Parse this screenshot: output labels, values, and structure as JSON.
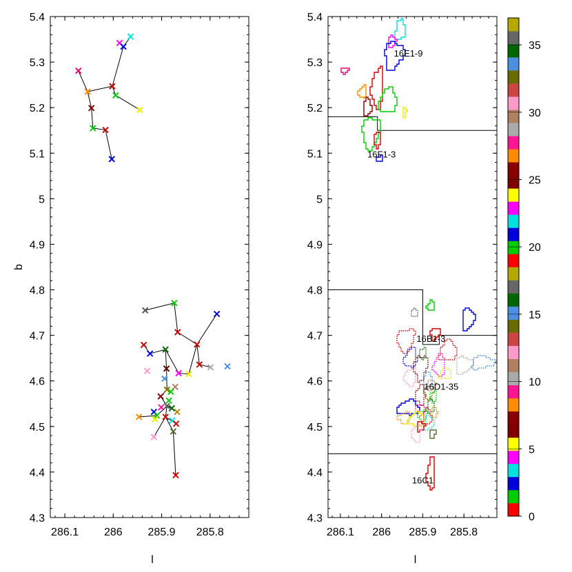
{
  "chart_data": [
    {
      "type": "scatter",
      "panel": "left",
      "xlabel": "l",
      "ylabel": "b",
      "xlim": [
        286.13,
        285.72
      ],
      "ylim": [
        4.3,
        5.4
      ],
      "xticks": [
        286.1,
        286.0,
        285.9,
        285.8
      ],
      "xtick_labels": [
        "286.1",
        "286",
        "285.9",
        "285.8"
      ],
      "yticks": [
        4.3,
        4.4,
        4.5,
        4.6,
        4.7,
        4.8,
        4.9,
        5.0,
        5.1,
        5.2,
        5.3,
        5.4
      ],
      "ytick_labels": [
        "4.3",
        "4.4",
        "4.5",
        "4.6",
        "4.7",
        "4.8",
        "4.9",
        "5",
        "5.1",
        "5.2",
        "5.3",
        "5.4"
      ],
      "points": [
        {
          "l": 285.964,
          "b": 5.356,
          "color": "#00e0e0"
        },
        {
          "l": 285.987,
          "b": 5.342,
          "color": "#ff00ff"
        },
        {
          "l": 285.979,
          "b": 5.334,
          "color": "#0000dd"
        },
        {
          "l": 286.072,
          "b": 5.281,
          "color": "#e8006e"
        },
        {
          "l": 286.002,
          "b": 5.247,
          "color": "#cc0000"
        },
        {
          "l": 286.053,
          "b": 5.235,
          "color": "#ff8c00"
        },
        {
          "l": 285.995,
          "b": 5.227,
          "color": "#00cc00"
        },
        {
          "l": 286.045,
          "b": 5.199,
          "color": "#800000"
        },
        {
          "l": 285.945,
          "b": 5.195,
          "color": "#eeee00"
        },
        {
          "l": 286.042,
          "b": 5.155,
          "color": "#00cc00"
        },
        {
          "l": 286.016,
          "b": 5.151,
          "color": "#cc0000"
        },
        {
          "l": 286.003,
          "b": 5.087,
          "color": "#0000dd"
        },
        {
          "l": 285.874,
          "b": 4.771,
          "color": "#00cc00"
        },
        {
          "l": 285.934,
          "b": 4.755,
          "color": "#555555"
        },
        {
          "l": 285.786,
          "b": 4.747,
          "color": "#0000dd"
        },
        {
          "l": 285.867,
          "b": 4.707,
          "color": "#cc0000"
        },
        {
          "l": 285.827,
          "b": 4.68,
          "color": "#cc0000"
        },
        {
          "l": 285.937,
          "b": 4.679,
          "color": "#cc0000"
        },
        {
          "l": 285.892,
          "b": 4.669,
          "color": "#006600"
        },
        {
          "l": 285.924,
          "b": 4.66,
          "color": "#0000dd"
        },
        {
          "l": 285.822,
          "b": 4.636,
          "color": "#cc0000"
        },
        {
          "l": 285.764,
          "b": 4.632,
          "color": "#4a90e2"
        },
        {
          "l": 285.799,
          "b": 4.63,
          "color": "#aaaaaa"
        },
        {
          "l": 285.89,
          "b": 4.627,
          "color": "#660000"
        },
        {
          "l": 285.93,
          "b": 4.622,
          "color": "#ff99cc"
        },
        {
          "l": 285.865,
          "b": 4.617,
          "color": "#ff00ff"
        },
        {
          "l": 285.844,
          "b": 4.615,
          "color": "#eeee00"
        },
        {
          "l": 285.894,
          "b": 4.605,
          "color": "#4a90e2"
        },
        {
          "l": 285.872,
          "b": 4.587,
          "color": "#b08060"
        },
        {
          "l": 285.889,
          "b": 4.581,
          "color": "#8b7500"
        },
        {
          "l": 285.881,
          "b": 4.576,
          "color": "#00cc00"
        },
        {
          "l": 285.902,
          "b": 4.566,
          "color": "#800000"
        },
        {
          "l": 285.885,
          "b": 4.557,
          "color": "#00cc00"
        },
        {
          "l": 285.889,
          "b": 4.545,
          "color": "#555555"
        },
        {
          "l": 285.901,
          "b": 4.542,
          "color": "#ff1493"
        },
        {
          "l": 285.879,
          "b": 4.54,
          "color": "#006600"
        },
        {
          "l": 285.868,
          "b": 4.532,
          "color": "#b8860b"
        },
        {
          "l": 285.916,
          "b": 4.532,
          "color": "#0000dd"
        },
        {
          "l": 285.91,
          "b": 4.524,
          "color": "#00cc00"
        },
        {
          "l": 285.947,
          "b": 4.521,
          "color": "#ff8c00"
        },
        {
          "l": 285.892,
          "b": 4.521,
          "color": "#cc0000"
        },
        {
          "l": 285.914,
          "b": 4.516,
          "color": "#eeee00"
        },
        {
          "l": 285.878,
          "b": 4.513,
          "color": "#00e0e0"
        },
        {
          "l": 285.87,
          "b": 4.506,
          "color": "#cc0000"
        },
        {
          "l": 285.876,
          "b": 4.489,
          "color": "#556b2f"
        },
        {
          "l": 285.916,
          "b": 4.477,
          "color": "#ff99cc"
        },
        {
          "l": 285.871,
          "b": 4.393,
          "color": "#cc0000"
        }
      ],
      "segments": [
        [
          285.964,
          5.356,
          285.979,
          5.334
        ],
        [
          285.979,
          5.334,
          286.002,
          5.247
        ],
        [
          286.002,
          5.247,
          286.053,
          5.235
        ],
        [
          286.053,
          5.235,
          286.072,
          5.281
        ],
        [
          286.053,
          5.235,
          286.045,
          5.199
        ],
        [
          286.045,
          5.199,
          286.042,
          5.155
        ],
        [
          286.042,
          5.155,
          286.016,
          5.151
        ],
        [
          286.016,
          5.151,
          286.003,
          5.087
        ],
        [
          286.002,
          5.247,
          285.995,
          5.227
        ],
        [
          285.995,
          5.227,
          285.945,
          5.195
        ],
        [
          285.934,
          4.755,
          285.874,
          4.771
        ],
        [
          285.874,
          4.771,
          285.867,
          4.707
        ],
        [
          285.867,
          4.707,
          285.827,
          4.68
        ],
        [
          285.827,
          4.68,
          285.786,
          4.747
        ],
        [
          285.827,
          4.68,
          285.822,
          4.636
        ],
        [
          285.822,
          4.636,
          285.799,
          4.63
        ],
        [
          285.827,
          4.68,
          285.844,
          4.615
        ],
        [
          285.844,
          4.615,
          285.865,
          4.617
        ],
        [
          285.865,
          4.617,
          285.892,
          4.669
        ],
        [
          285.892,
          4.669,
          285.924,
          4.66
        ],
        [
          285.924,
          4.66,
          285.937,
          4.679
        ],
        [
          285.892,
          4.669,
          285.89,
          4.627
        ],
        [
          285.89,
          4.627,
          285.889,
          4.581
        ],
        [
          285.889,
          4.581,
          285.902,
          4.566
        ],
        [
          285.902,
          4.566,
          285.889,
          4.545
        ],
        [
          285.889,
          4.545,
          285.879,
          4.54
        ],
        [
          285.879,
          4.54,
          285.868,
          4.532
        ],
        [
          285.889,
          4.545,
          285.91,
          4.524
        ],
        [
          285.91,
          4.524,
          285.947,
          4.521
        ],
        [
          285.91,
          4.524,
          285.916,
          4.532
        ],
        [
          285.889,
          4.545,
          285.892,
          4.521
        ],
        [
          285.892,
          4.521,
          285.87,
          4.506
        ],
        [
          285.892,
          4.521,
          285.876,
          4.489
        ],
        [
          285.876,
          4.489,
          285.871,
          4.393
        ],
        [
          285.892,
          4.521,
          285.916,
          4.477
        ]
      ]
    },
    {
      "type": "map",
      "panel": "right",
      "xlabel": "l",
      "xlim": [
        286.13,
        285.72
      ],
      "ylim": [
        4.3,
        5.4
      ],
      "xticks": [
        286.1,
        286.0,
        285.9,
        285.8
      ],
      "xtick_labels": [
        "286.1",
        "286",
        "285.9",
        "285.8"
      ],
      "yticks": [
        4.3,
        4.4,
        4.5,
        4.6,
        4.7,
        4.8,
        4.9,
        5.0,
        5.1,
        5.2,
        5.3,
        5.4
      ],
      "ytick_labels": [
        "4.3",
        "4.4",
        "4.5",
        "4.6",
        "4.7",
        "4.8",
        "4.9",
        "5",
        "5.1",
        "5.2",
        "5.3",
        "5.4"
      ],
      "region_labels": [
        {
          "text": "16E1-9",
          "l": 285.935,
          "b": 5.318
        },
        {
          "text": "16F1-3",
          "l": 286.0,
          "b": 5.097
        },
        {
          "text": "16B1-3",
          "l": 285.88,
          "b": 4.692
        },
        {
          "text": "16D1-35",
          "l": 285.855,
          "b": 4.587
        },
        {
          "text": "16C1",
          "l": 285.9,
          "b": 4.381
        }
      ],
      "boundaries": [
        [
          [
            286.13,
            5.18
          ],
          [
            286.01,
            5.18
          ],
          [
            286.01,
            5.15
          ],
          [
            285.72,
            5.15
          ]
        ],
        [
          [
            286.13,
            4.8
          ],
          [
            285.9,
            4.8
          ],
          [
            285.9,
            4.68
          ],
          [
            285.86,
            4.68
          ],
          [
            285.86,
            4.7
          ],
          [
            285.72,
            4.7
          ]
        ],
        [
          [
            286.13,
            4.44
          ],
          [
            285.72,
            4.44
          ]
        ]
      ],
      "clumps": [
        {
          "l": 285.955,
          "b": 5.37,
          "rl": 0.013,
          "rb": 0.022,
          "color": "#00e0e0",
          "style": "solid"
        },
        {
          "l": 285.975,
          "b": 5.345,
          "rl": 0.009,
          "rb": 0.012,
          "color": "#ff00ff",
          "style": "solid"
        },
        {
          "l": 285.97,
          "b": 5.315,
          "rl": 0.022,
          "rb": 0.03,
          "color": "#0000dd",
          "style": "solid"
        },
        {
          "l": 286.09,
          "b": 5.28,
          "rl": 0.009,
          "rb": 0.006,
          "color": "#e8006e",
          "style": "solid"
        },
        {
          "l": 286.01,
          "b": 5.245,
          "rl": 0.014,
          "rb": 0.045,
          "color": "#cc0000",
          "style": "solid"
        },
        {
          "l": 286.045,
          "b": 5.235,
          "rl": 0.009,
          "rb": 0.015,
          "color": "#ff8c00",
          "style": "solid"
        },
        {
          "l": 285.985,
          "b": 5.215,
          "rl": 0.022,
          "rb": 0.028,
          "color": "#00cc00",
          "style": "solid"
        },
        {
          "l": 286.035,
          "b": 5.2,
          "rl": 0.009,
          "rb": 0.02,
          "color": "#800000",
          "style": "solid"
        },
        {
          "l": 285.945,
          "b": 5.19,
          "rl": 0.005,
          "rb": 0.01,
          "color": "#eeee00",
          "style": "solid"
        },
        {
          "l": 286.025,
          "b": 5.145,
          "rl": 0.022,
          "rb": 0.036,
          "color": "#00cc00",
          "style": "solid"
        },
        {
          "l": 286.01,
          "b": 5.13,
          "rl": 0.009,
          "rb": 0.018,
          "color": "#cc0000",
          "style": "solid"
        },
        {
          "l": 286.005,
          "b": 5.088,
          "rl": 0.006,
          "rb": 0.007,
          "color": "#0000dd",
          "style": "solid"
        },
        {
          "l": 285.88,
          "b": 4.765,
          "rl": 0.009,
          "rb": 0.01,
          "color": "#00cc00",
          "style": "solid"
        },
        {
          "l": 285.92,
          "b": 4.75,
          "rl": 0.008,
          "rb": 0.008,
          "color": "#555555",
          "style": "dotted"
        },
        {
          "l": 285.79,
          "b": 4.735,
          "rl": 0.015,
          "rb": 0.024,
          "color": "#0000dd",
          "style": "solid"
        },
        {
          "l": 285.87,
          "b": 4.703,
          "rl": 0.01,
          "rb": 0.014,
          "color": "#cc0000",
          "style": "solid"
        },
        {
          "l": 285.94,
          "b": 4.69,
          "rl": 0.02,
          "rb": 0.025,
          "color": "#cc0000",
          "style": "dotted"
        },
        {
          "l": 285.9,
          "b": 4.66,
          "rl": 0.008,
          "rb": 0.012,
          "color": "#006600",
          "style": "dotted"
        },
        {
          "l": 285.93,
          "b": 4.65,
          "rl": 0.016,
          "rb": 0.02,
          "color": "#0000dd",
          "style": "dotted"
        },
        {
          "l": 285.84,
          "b": 4.665,
          "rl": 0.02,
          "rb": 0.022,
          "color": "#cc0000",
          "style": "dotted"
        },
        {
          "l": 285.755,
          "b": 4.64,
          "rl": 0.028,
          "rb": 0.014,
          "color": "#4a90e2",
          "style": "dotted"
        },
        {
          "l": 285.8,
          "b": 4.635,
          "rl": 0.02,
          "rb": 0.018,
          "color": "#aaaaaa",
          "style": "dotted"
        },
        {
          "l": 285.905,
          "b": 4.63,
          "rl": 0.016,
          "rb": 0.028,
          "color": "#660000",
          "style": "dotted"
        },
        {
          "l": 285.93,
          "b": 4.61,
          "rl": 0.014,
          "rb": 0.02,
          "color": "#ff99cc",
          "style": "dotted"
        },
        {
          "l": 285.86,
          "b": 4.635,
          "rl": 0.013,
          "rb": 0.024,
          "color": "#ff00ff",
          "style": "dotted"
        },
        {
          "l": 285.845,
          "b": 4.615,
          "rl": 0.014,
          "rb": 0.012,
          "color": "#eeee00",
          "style": "dotted"
        },
        {
          "l": 285.888,
          "b": 4.6,
          "rl": 0.01,
          "rb": 0.016,
          "color": "#4a90e2",
          "style": "dotted"
        },
        {
          "l": 285.88,
          "b": 4.59,
          "rl": 0.009,
          "rb": 0.012,
          "color": "#b08060",
          "style": "dotted"
        },
        {
          "l": 285.885,
          "b": 4.575,
          "rl": 0.01,
          "rb": 0.015,
          "color": "#8b7500",
          "style": "dotted"
        },
        {
          "l": 285.875,
          "b": 4.565,
          "rl": 0.008,
          "rb": 0.012,
          "color": "#00cc00",
          "style": "dotted"
        },
        {
          "l": 285.905,
          "b": 4.57,
          "rl": 0.012,
          "rb": 0.02,
          "color": "#800000",
          "style": "dotted"
        },
        {
          "l": 285.935,
          "b": 4.54,
          "rl": 0.026,
          "rb": 0.016,
          "color": "#0000dd",
          "style": "solid"
        },
        {
          "l": 285.88,
          "b": 4.545,
          "rl": 0.008,
          "rb": 0.015,
          "color": "#006600",
          "style": "dotted"
        },
        {
          "l": 285.872,
          "b": 4.53,
          "rl": 0.007,
          "rb": 0.012,
          "color": "#b8860b",
          "style": "dotted"
        },
        {
          "l": 285.905,
          "b": 4.535,
          "rl": 0.012,
          "rb": 0.012,
          "color": "#ff1493",
          "style": "dotted"
        },
        {
          "l": 285.9,
          "b": 4.525,
          "rl": 0.01,
          "rb": 0.012,
          "color": "#00cc00",
          "style": "dotted"
        },
        {
          "l": 285.945,
          "b": 4.52,
          "rl": 0.016,
          "rb": 0.012,
          "color": "#ff8c00",
          "style": "dotted"
        },
        {
          "l": 285.915,
          "b": 4.515,
          "rl": 0.02,
          "rb": 0.014,
          "color": "#eeee00",
          "style": "solid"
        },
        {
          "l": 285.89,
          "b": 4.52,
          "rl": 0.01,
          "rb": 0.018,
          "color": "#cc0000",
          "style": "dotted"
        },
        {
          "l": 285.885,
          "b": 4.507,
          "rl": 0.012,
          "rb": 0.016,
          "color": "#00e0e0",
          "style": "dotted"
        },
        {
          "l": 285.905,
          "b": 4.5,
          "rl": 0.01,
          "rb": 0.01,
          "color": "#cc0000",
          "style": "solid"
        },
        {
          "l": 285.875,
          "b": 4.485,
          "rl": 0.008,
          "rb": 0.01,
          "color": "#556b2f",
          "style": "solid"
        },
        {
          "l": 285.915,
          "b": 4.485,
          "rl": 0.012,
          "rb": 0.018,
          "color": "#ff99cc",
          "style": "dotted"
        },
        {
          "l": 285.88,
          "b": 4.395,
          "rl": 0.009,
          "rb": 0.036,
          "color": "#cc0000",
          "style": "solid"
        }
      ]
    }
  ],
  "colorbar": {
    "min": 0,
    "max": 37,
    "tick_labels": [
      "0",
      "5",
      "10",
      "15",
      "20",
      "25",
      "30",
      "35"
    ],
    "tick_values": [
      0,
      5,
      10,
      15,
      20,
      25,
      30,
      35
    ],
    "colors": [
      "#ff0000",
      "#00cc00",
      "#0000dd",
      "#00e0e0",
      "#ff00ff",
      "#ffff00",
      "#800000",
      "#880000",
      "#ff8c00",
      "#ff1493",
      "#aaaaaa",
      "#b08060",
      "#ff99cc",
      "#cc4444",
      "#6b6b00",
      "#4a90e2",
      "#006600",
      "#666666",
      "#b5a800",
      "#ff0000",
      "#00cc00",
      "#0000dd",
      "#00e0e0",
      "#ff00ff",
      "#ffff00",
      "#800000",
      "#880000",
      "#ff8c00",
      "#ff1493",
      "#aaaaaa",
      "#b08060",
      "#ff99cc",
      "#cc4444",
      "#6b6b00",
      "#4a90e2",
      "#006600",
      "#666666",
      "#b5a800"
    ]
  }
}
